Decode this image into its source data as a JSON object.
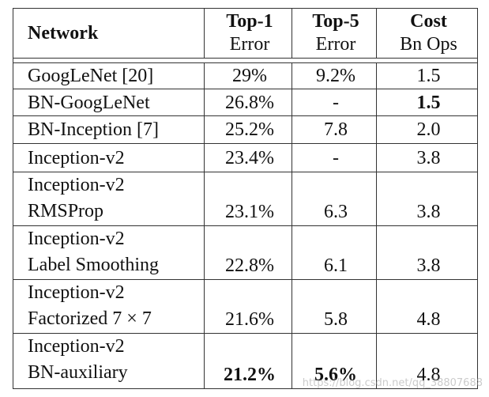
{
  "table": {
    "header": [
      "Network",
      [
        "Top-1",
        "Error"
      ],
      [
        "Top-5",
        "Error"
      ],
      [
        "Cost",
        "Bn Ops"
      ]
    ],
    "rows": [
      [
        [
          "GoogLeNet [20]"
        ],
        "29%",
        "9.2%",
        "1.5"
      ],
      [
        [
          "BN-GoogLeNet"
        ],
        "26.8%",
        "-",
        "1.5"
      ],
      [
        [
          "BN-Inception [7]"
        ],
        "25.2%",
        "7.8",
        "2.0"
      ],
      [
        [
          "Inception-v2"
        ],
        "23.4%",
        "-",
        "3.8"
      ],
      [
        [
          "Inception-v2",
          "RMSProp"
        ],
        "23.1%",
        "6.3",
        "3.8"
      ],
      [
        [
          "Inception-v2",
          "Label Smoothing"
        ],
        "22.8%",
        "6.1",
        "3.8"
      ],
      [
        [
          "Inception-v2",
          "Factorized 7 × 7"
        ],
        "21.6%",
        "5.8",
        "4.8"
      ],
      [
        [
          "Inception-v2",
          "BN-auxiliary"
        ],
        "21.2%",
        "5.6%",
        "4.8"
      ]
    ]
  },
  "watermark": "https://blog.csdn.net/qq_38807688"
}
